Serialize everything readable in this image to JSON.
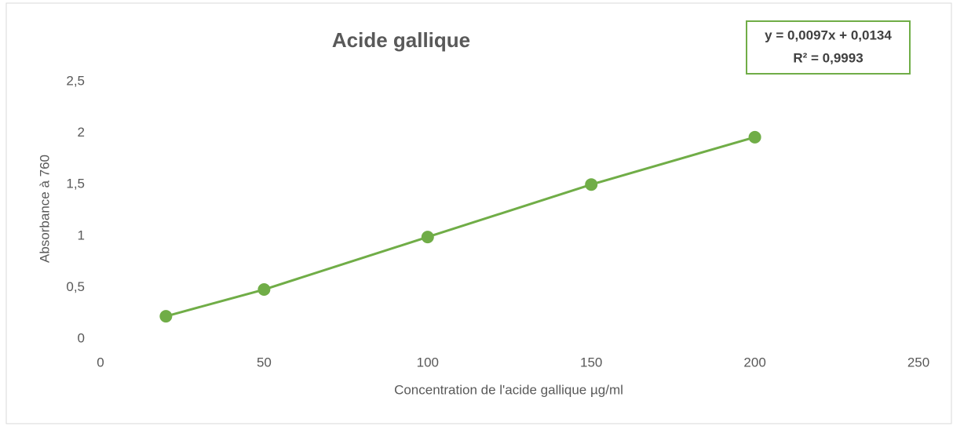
{
  "chart_data": {
    "type": "scatter",
    "title": "Acide gallique",
    "x_label": "Concentration de l'acide gallique  µg/ml",
    "y_label": "Absorbance à 760",
    "trendline_label": "y = 0,0097x + 0,0134",
    "r2_label": "R² = 0,9993",
    "x": [
      20,
      50,
      100,
      150,
      200
    ],
    "series": [
      {
        "color": "#70ad47",
        "values": [
          0.22,
          0.48,
          0.99,
          1.5,
          1.96
        ]
      }
    ],
    "xlim": [
      0,
      250
    ],
    "xticks": [
      0,
      50,
      100,
      150,
      200,
      250
    ],
    "ylim": [
      0,
      2.5
    ],
    "yticks": [
      0,
      {
        "value": 0.5,
        "label": "0,5"
      },
      1,
      {
        "value": 1.5,
        "label": "1,5"
      },
      2,
      {
        "value": 2.5,
        "label": "2,5"
      }
    ],
    "grid": false,
    "trendline": true
  }
}
